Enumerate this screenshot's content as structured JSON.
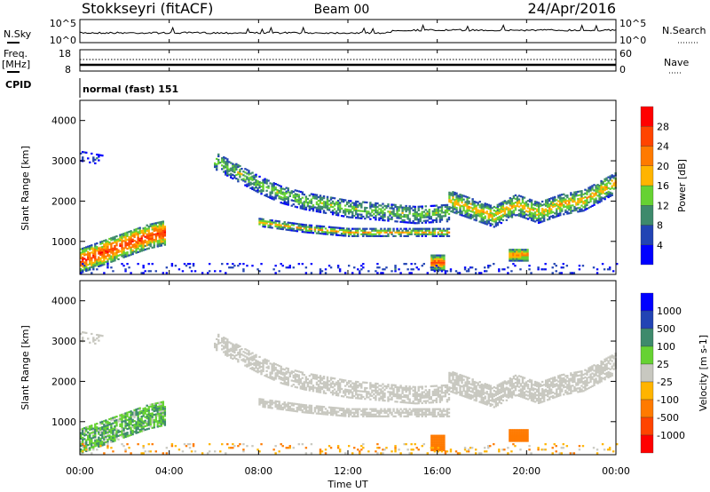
{
  "header": {
    "station": "Stokkseyri (fitACF)",
    "beam": "Beam 00",
    "date": "24/Apr/2016"
  },
  "noise_panel": {
    "left_label": "N.Sky",
    "right_label": "N.Search",
    "left_ticks": [
      "10^5",
      "10^0"
    ],
    "right_ticks": [
      "10^5",
      "10^0"
    ]
  },
  "freq_panel": {
    "left_label_1": "Freq.",
    "left_label_2": "[MHz]",
    "right_label": "Nave",
    "left_ticks": [
      "18",
      "8"
    ],
    "right_ticks": [
      "60",
      "0"
    ],
    "freq_mhz": 10,
    "nave": 33
  },
  "cpid": {
    "label": "CPID",
    "value": "normal (fast) 151"
  },
  "chart_data": [
    {
      "type": "heatmap",
      "name": "power",
      "ylabel": "Slant Range [km]",
      "xlabel": "Time UT",
      "xlim": [
        0,
        24
      ],
      "ylim": [
        180,
        4500
      ],
      "x_ticks": [
        "00:00",
        "04:00",
        "08:00",
        "12:00",
        "16:00",
        "20:00",
        "00:00"
      ],
      "y_ticks": [
        "1000",
        "2000",
        "3000",
        "4000"
      ],
      "colorbar": {
        "label": "Power [dB]",
        "ticks": [
          "4",
          "8",
          "12",
          "16",
          "20",
          "24",
          "28"
        ],
        "colors": [
          "#0000ff",
          "#2244b4",
          "#3e8a6c",
          "#66d232",
          "#ffb400",
          "#ff7a00",
          "#ff4400",
          "#ff0000"
        ]
      }
    },
    {
      "type": "heatmap",
      "name": "velocity",
      "ylabel": "Slant Range [km]",
      "xlabel": "Time UT",
      "xlim": [
        0,
        24
      ],
      "ylim": [
        180,
        4500
      ],
      "colorbar": {
        "label": "Velocity [m s-1]",
        "ticks": [
          "1000",
          "500",
          "100",
          "25",
          "-25",
          "-100",
          "-500",
          "-1000"
        ],
        "colors": [
          "#0000ff",
          "#2244b4",
          "#3e8a6c",
          "#66d232",
          "#c8c8c0",
          "#ffb400",
          "#ff7a00",
          "#ff4400",
          "#ff0000"
        ]
      }
    }
  ],
  "echo_regions": [
    {
      "t": [
        0,
        1,
        2,
        3,
        3.8
      ],
      "r": [
        500,
        700,
        900,
        1100,
        1200
      ],
      "w": 300,
      "power": 25,
      "vel": 80,
      "density": 0.8
    },
    {
      "t": [
        6,
        7,
        8,
        9,
        10,
        11,
        12,
        13,
        14,
        15,
        16.5
      ],
      "r": [
        3000,
        2700,
        2400,
        2150,
        2000,
        1900,
        1800,
        1750,
        1700,
        1650,
        1700
      ],
      "w": 220,
      "power": 13,
      "vel": 0,
      "density": 0.6
    },
    {
      "t": [
        8,
        10,
        12,
        14,
        16.5
      ],
      "r": [
        1450,
        1300,
        1200,
        1200,
        1200
      ],
      "w": 90,
      "power": 17,
      "vel": 0,
      "density": 0.7
    },
    {
      "t": [
        16.5,
        17.5,
        18.5,
        19.5,
        20.5,
        21.5,
        22.5,
        24
      ],
      "r": [
        2000,
        1800,
        1600,
        1900,
        1700,
        1900,
        2000,
        2450
      ],
      "w": 260,
      "power": 17,
      "vel": 0,
      "density": 0.7
    },
    {
      "t": [
        15.7,
        16.3
      ],
      "r": [
        450,
        450
      ],
      "w": 180,
      "power": 24,
      "vel": -300,
      "density": 1
    },
    {
      "t": [
        19.2,
        20.0
      ],
      "r": [
        650,
        650
      ],
      "w": 150,
      "power": 20,
      "vel": -300,
      "density": 1
    },
    {
      "t": [
        0,
        24
      ],
      "r": [
        300,
        300
      ],
      "w": 150,
      "power": 5,
      "vel": -60,
      "density": 0.12
    },
    {
      "t": [
        0,
        1
      ],
      "r": [
        3100,
        3000
      ],
      "w": 120,
      "power": 6,
      "vel": 0,
      "density": 0.25
    }
  ]
}
